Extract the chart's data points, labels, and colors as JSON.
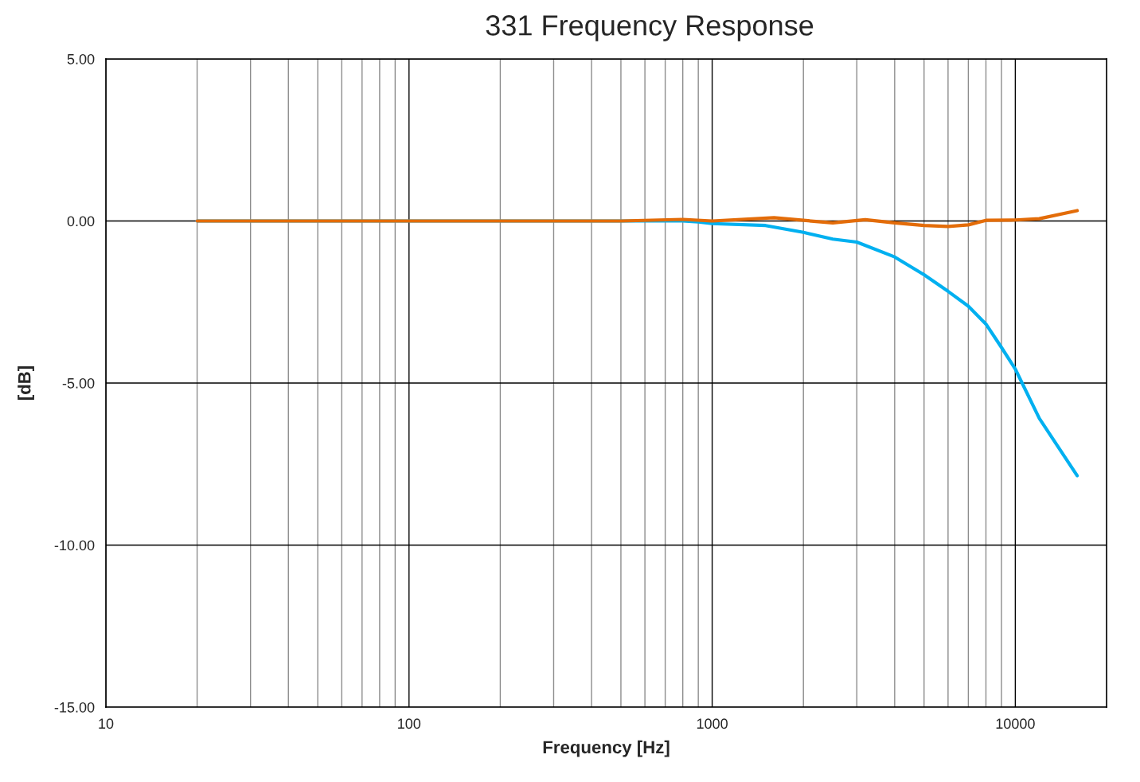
{
  "chart_data": {
    "type": "line",
    "title": "331 Frequency Response",
    "xlabel": "Frequency [Hz]",
    "ylabel": "[dB]",
    "log": "x",
    "grid": true,
    "marker": "none",
    "line_style": "solid",
    "xlim": [
      10,
      20000
    ],
    "ylim": [
      -15,
      5
    ],
    "xticks": [
      10,
      {
        "value": 20,
        "label": null
      },
      {
        "value": 30,
        "label": null
      },
      {
        "value": 40,
        "label": null
      },
      {
        "value": 50,
        "label": null
      },
      {
        "value": 60,
        "label": null
      },
      {
        "value": 70,
        "label": null
      },
      {
        "value": 80,
        "label": null
      },
      {
        "value": 90,
        "label": null
      },
      100,
      {
        "value": 200,
        "label": null
      },
      {
        "value": 300,
        "label": null
      },
      {
        "value": 400,
        "label": null
      },
      {
        "value": 500,
        "label": null
      },
      {
        "value": 600,
        "label": null
      },
      {
        "value": 700,
        "label": null
      },
      {
        "value": 800,
        "label": null
      },
      {
        "value": 900,
        "label": null
      },
      1000,
      {
        "value": 2000,
        "label": null
      },
      {
        "value": 3000,
        "label": null
      },
      {
        "value": 4000,
        "label": null
      },
      {
        "value": 5000,
        "label": null
      },
      {
        "value": 6000,
        "label": null
      },
      {
        "value": 7000,
        "label": null
      },
      {
        "value": 8000,
        "label": null
      },
      {
        "value": 9000,
        "label": null
      },
      10000
    ],
    "yticks": [
      {
        "value": -15,
        "label": "-15.00"
      },
      {
        "value": -10,
        "label": "-10.00"
      },
      {
        "value": -5,
        "label": "-5.00"
      },
      {
        "value": 0,
        "label": "0.00"
      },
      {
        "value": 5,
        "label": "5.00"
      }
    ],
    "series": [
      {
        "color": "#00b0f0",
        "x": [
          20,
          100,
          500,
          800,
          900,
          1000,
          1500,
          2000,
          2500,
          3000,
          4000,
          5000,
          6000,
          7000,
          8000,
          9000,
          10000,
          12000,
          16000
        ],
        "values": [
          0,
          0,
          0,
          0,
          -0.03,
          -0.08,
          -0.14,
          -0.35,
          -0.56,
          -0.65,
          -1.11,
          -1.66,
          -2.17,
          -2.63,
          -3.18,
          -3.9,
          -4.57,
          -6.09,
          -7.86
        ]
      },
      {
        "color": "#e36c09",
        "x": [
          20,
          100,
          500,
          800,
          1000,
          1600,
          2500,
          3200,
          4000,
          5000,
          6000,
          7000,
          8000,
          10000,
          12000,
          16000
        ],
        "values": [
          0,
          0,
          0,
          0.05,
          0,
          0.1,
          -0.06,
          0.04,
          -0.06,
          -0.14,
          -0.17,
          -0.12,
          0.02,
          0.03,
          0.07,
          0.32
        ]
      }
    ]
  }
}
